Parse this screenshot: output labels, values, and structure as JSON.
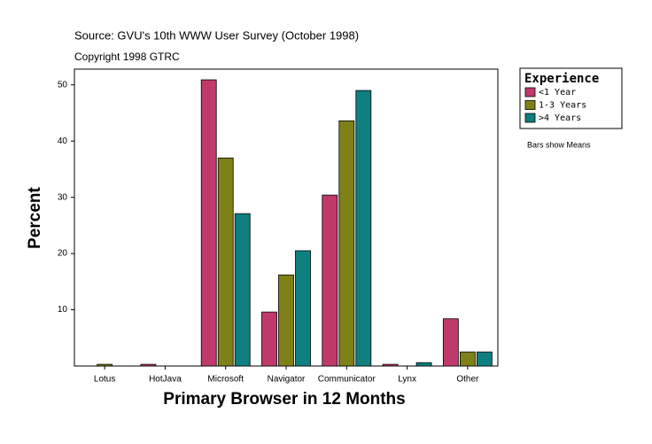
{
  "chart_data": {
    "type": "bar",
    "title": "Source: GVU's 10th WWW User Survey (October 1998)",
    "subtitle": "Copyright 1998 GTRC",
    "x_label": "Primary Browser in 12 Months",
    "y_label": "Percent",
    "note": "Bars show Means",
    "legend_title": "Experience",
    "categories": [
      "Lotus",
      "HotJava",
      "Microsoft",
      "Navigator",
      "Communicator",
      "Lynx",
      "Other"
    ],
    "series": [
      {
        "name": "<1 Year",
        "color": "#bf3a6a",
        "values": [
          0,
          0.3,
          50.9,
          9.6,
          30.4,
          0.3,
          8.4
        ]
      },
      {
        "name": "1-3 Years",
        "color": "#808018",
        "values": [
          0.3,
          0,
          37.0,
          16.2,
          43.6,
          0,
          2.5
        ]
      },
      {
        "name": ">4 Years",
        "color": "#0f7f7f",
        "values": [
          0,
          0,
          27.1,
          20.5,
          49.0,
          0.6,
          2.5
        ]
      }
    ],
    "ylim": [
      0,
      52.8
    ],
    "yticks": [
      10,
      20,
      30,
      40,
      50
    ]
  }
}
